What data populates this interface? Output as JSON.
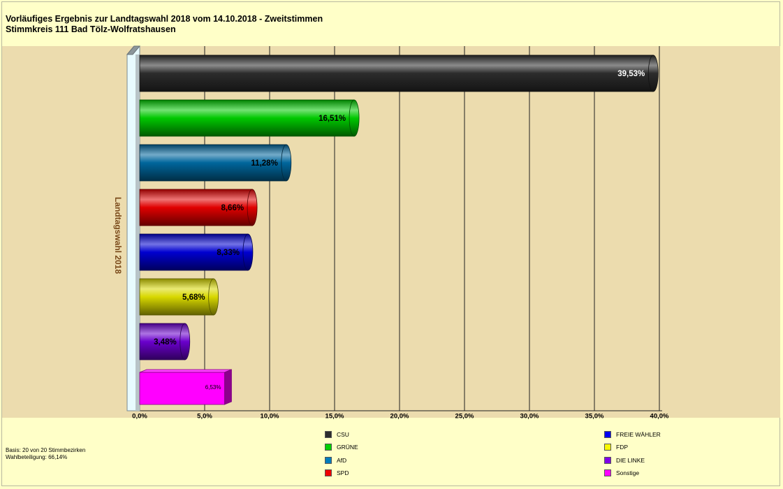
{
  "header": {
    "title": "Vorläufiges Ergebnis zur Landtagswahl 2018 vom 14.10.2018 - Zweitstimmen",
    "subtitle": "Stimmkreis 111 Bad Tölz-Wolfratshausen"
  },
  "footer": {
    "basis": "Basis: 20 von 20 Stimmbezirken",
    "turnout": "Wahlbeteiligung: 66,14%"
  },
  "chart_data": {
    "type": "bar",
    "orientation": "horizontal",
    "title": "Vorläufiges Ergebnis zur Landtagswahl 2018 vom 14.10.2018 - Zweitstimmen",
    "subtitle": "Stimmkreis 111 Bad Tölz-Wolfratshausen",
    "ylabel": "Landtagswahl 2018",
    "xlabel": "",
    "xlim": [
      0,
      40
    ],
    "ticks": [
      0,
      5,
      10,
      15,
      20,
      25,
      30,
      35,
      40
    ],
    "tick_labels": [
      "0,0%",
      "5,0%",
      "10,0%",
      "15,0%",
      "20,0%",
      "25,0%",
      "30,0%",
      "35,0%",
      "40,0%"
    ],
    "grid": true,
    "legend_placement": "bottom",
    "categories": [
      "CSU",
      "GRÜNE",
      "AfD",
      "SPD",
      "FREIE WÄHLER",
      "FDP",
      "DIE LINKE",
      "Sonstige"
    ],
    "values": [
      39.53,
      16.51,
      11.28,
      8.66,
      8.33,
      5.68,
      3.48,
      6.53
    ],
    "value_labels": [
      "39,53%",
      "16,51%",
      "11,28%",
      "8,66%",
      "8,33%",
      "5,68%",
      "3,48%",
      "6,53%"
    ],
    "colors": [
      "#2c2c2c",
      "#00c800",
      "#00669c",
      "#e00000",
      "#0000d0",
      "#d8d800",
      "#6a00cc",
      "#ff00ff"
    ],
    "label_colors": [
      "#ffffff",
      "#000000",
      "#000000",
      "#000000",
      "#000000",
      "#000000",
      "#000000",
      "#000000"
    ],
    "shapes": [
      "cylinder",
      "cylinder",
      "cylinder",
      "cylinder",
      "cylinder",
      "cylinder",
      "cylinder",
      "box"
    ]
  },
  "legend": {
    "items": [
      {
        "label": "CSU",
        "color": "#2c2c2c"
      },
      {
        "label": "GRÜNE",
        "color": "#00d000"
      },
      {
        "label": "AfD",
        "color": "#007cbc"
      },
      {
        "label": "SPD",
        "color": "#f00000"
      },
      {
        "label": "FREIE WÄHLER",
        "color": "#0000f0"
      },
      {
        "label": "FDP",
        "color": "#f8f800"
      },
      {
        "label": "DIE LINKE",
        "color": "#8000e8"
      },
      {
        "label": "Sonstige",
        "color": "#ff00ff"
      }
    ]
  }
}
